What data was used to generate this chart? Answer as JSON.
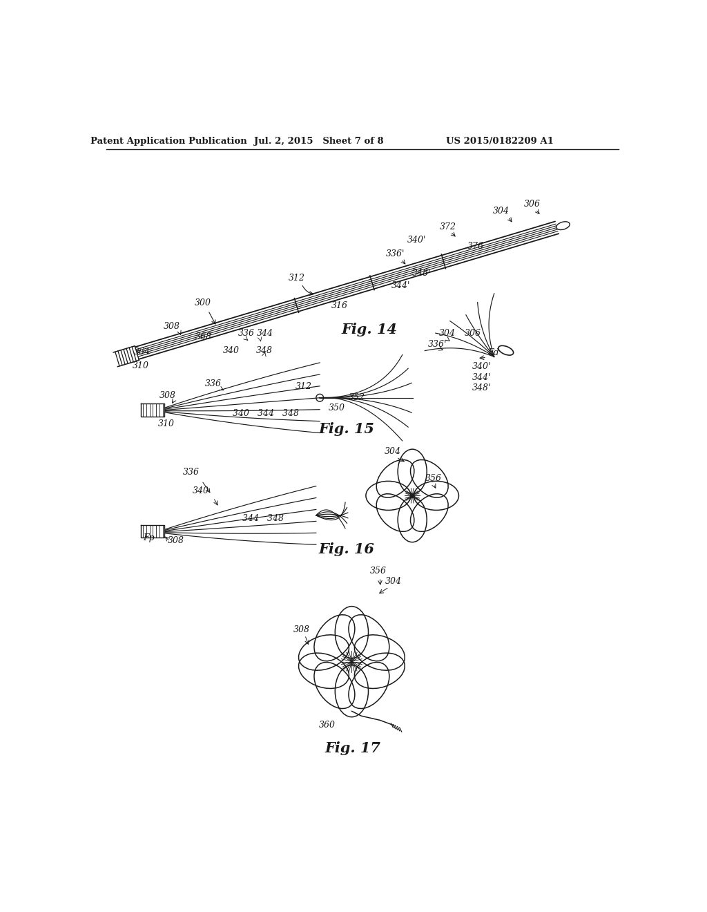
{
  "background_color": "#ffffff",
  "header_left": "Patent Application Publication",
  "header_mid": "Jul. 2, 2015   Sheet 7 of 8",
  "header_right": "US 2015/0182209 A1",
  "fig14_label": "Fig. 14",
  "fig15_label": "Fig. 15",
  "fig16_label": "Fig. 16",
  "fig17_label": "Fig. 17",
  "line_color": "#1a1a1a",
  "text_color": "#1a1a1a"
}
